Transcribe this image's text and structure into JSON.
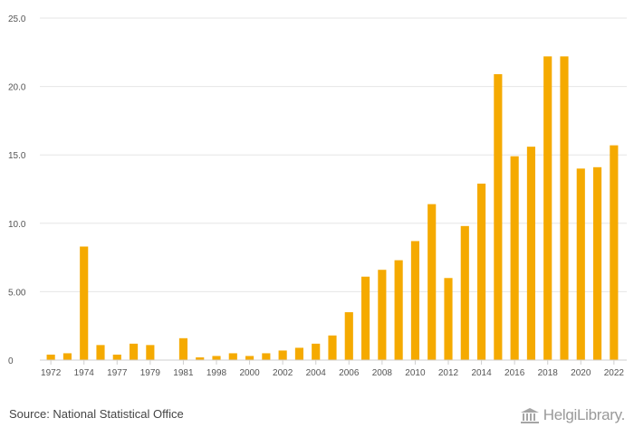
{
  "chart_data": {
    "type": "bar",
    "title": "",
    "xlabel": "",
    "ylabel": "",
    "ylim": [
      0,
      25
    ],
    "yticks": [
      "0",
      "5.00",
      "10.0",
      "15.0",
      "20.0",
      "25.0"
    ],
    "ytick_values": [
      0,
      5,
      10,
      15,
      20,
      25
    ],
    "grid": true,
    "bar_color": "#F5AA00",
    "categories": [
      "1972",
      "1973",
      "1974",
      "1975",
      "1977",
      "1978",
      "1979",
      "1980",
      "1981",
      "1982",
      "1998",
      "1999",
      "2000",
      "2001",
      "2002",
      "2003",
      "2004",
      "2005",
      "2006",
      "2007",
      "2008",
      "2009",
      "2010",
      "2011",
      "2012",
      "2013",
      "2014",
      "2015",
      "2016",
      "2017",
      "2018",
      "2019",
      "2020",
      "2021",
      "2022"
    ],
    "values": [
      0.4,
      0.5,
      8.3,
      1.1,
      0.4,
      1.2,
      1.1,
      null,
      1.6,
      0.2,
      0.3,
      0.5,
      0.3,
      0.5,
      0.7,
      0.9,
      1.2,
      1.8,
      3.5,
      6.1,
      6.6,
      7.3,
      8.7,
      11.4,
      6.0,
      9.8,
      12.9,
      20.9,
      14.9,
      15.6,
      22.2,
      22.2,
      14.0,
      14.1,
      15.7
    ],
    "xtick_labels": [
      "1972",
      "1974",
      "1977",
      "1979",
      "1981",
      "1998",
      "2000",
      "2002",
      "2004",
      "2006",
      "2008",
      "2010",
      "2012",
      "2014",
      "2016",
      "2018",
      "2020",
      "2022"
    ]
  },
  "footer": {
    "source": "Source: National Statistical Office",
    "brand": "HelgiLibrary.",
    "brand_icon": "bank-building-icon"
  }
}
